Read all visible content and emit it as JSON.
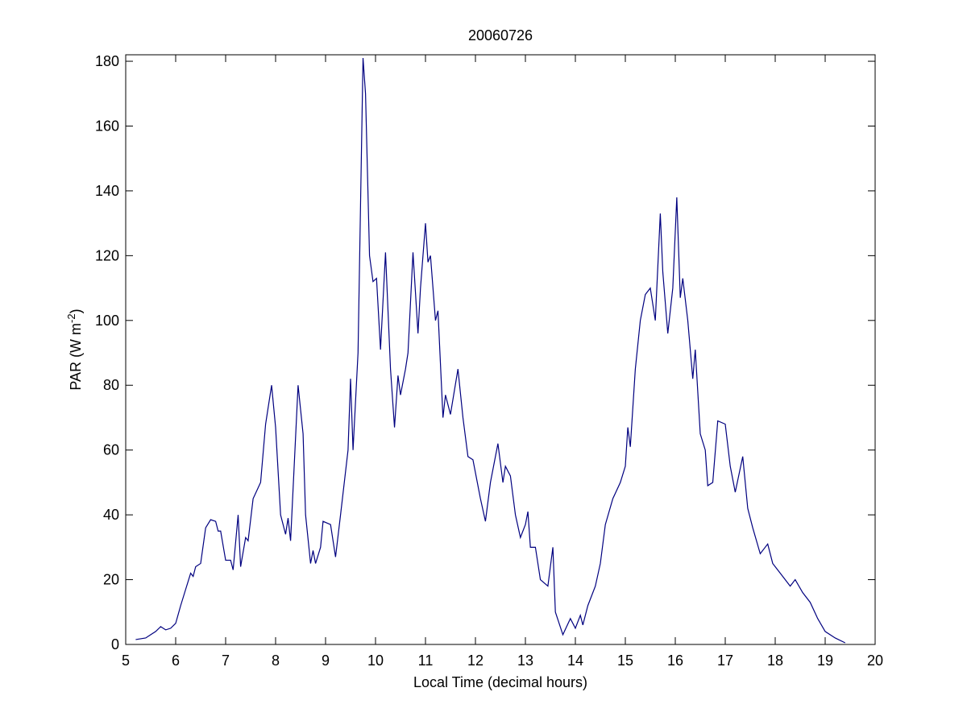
{
  "chart_data": {
    "type": "line",
    "title": "20060726",
    "x_label": "Local Time (decimal hours)",
    "y_label": {
      "text": "PAR (W m",
      "superscript": "-2",
      "suffix": ")"
    },
    "xlim": [
      5,
      20
    ],
    "xticks": [
      5,
      6,
      7,
      8,
      9,
      10,
      11,
      12,
      13,
      14,
      15,
      16,
      17,
      18,
      19,
      20
    ],
    "ylim": [
      0,
      182
    ],
    "yticks": [
      0,
      20,
      40,
      60,
      80,
      100,
      120,
      140,
      160,
      180
    ],
    "grid": false,
    "series": [
      {
        "color": "#00007f",
        "x": [
          5.2,
          5.4,
          5.5,
          5.6,
          5.7,
          5.8,
          5.9,
          6.0,
          6.1,
          6.2,
          6.3,
          6.35,
          6.4,
          6.5,
          6.6,
          6.7,
          6.8,
          6.85,
          6.9,
          7.0,
          7.1,
          7.15,
          7.25,
          7.3,
          7.4,
          7.45,
          7.55,
          7.7,
          7.8,
          7.92,
          8.0,
          8.1,
          8.2,
          8.25,
          8.3,
          8.45,
          8.55,
          8.6,
          8.7,
          8.75,
          8.8,
          8.9,
          8.95,
          9.1,
          9.2,
          9.3,
          9.45,
          9.5,
          9.55,
          9.65,
          9.75,
          9.8,
          9.88,
          9.95,
          10.02,
          10.1,
          10.2,
          10.3,
          10.38,
          10.45,
          10.5,
          10.6,
          10.65,
          10.75,
          10.85,
          10.9,
          11.0,
          11.05,
          11.1,
          11.2,
          11.25,
          11.35,
          11.4,
          11.5,
          11.65,
          11.75,
          11.85,
          11.95,
          12.1,
          12.2,
          12.3,
          12.45,
          12.55,
          12.6,
          12.7,
          12.8,
          12.9,
          13.0,
          13.05,
          13.1,
          13.2,
          13.3,
          13.45,
          13.55,
          13.6,
          13.75,
          13.9,
          14.0,
          14.1,
          14.15,
          14.25,
          14.4,
          14.5,
          14.6,
          14.75,
          14.9,
          15.0,
          15.05,
          15.1,
          15.2,
          15.3,
          15.4,
          15.5,
          15.6,
          15.7,
          15.75,
          15.85,
          15.95,
          16.03,
          16.1,
          16.15,
          16.25,
          16.35,
          16.4,
          16.5,
          16.6,
          16.65,
          16.75,
          16.85,
          17.0,
          17.1,
          17.2,
          17.35,
          17.45,
          17.55,
          17.7,
          17.85,
          17.95,
          18.1,
          18.3,
          18.4,
          18.55,
          18.7,
          18.85,
          19.0,
          19.2,
          19.4
        ],
        "values": [
          1.5,
          2,
          3,
          4,
          5.5,
          4.5,
          5,
          6.5,
          12,
          17,
          22,
          21,
          24,
          25,
          36,
          38.5,
          38,
          35,
          35,
          26,
          26,
          23,
          40,
          24,
          33,
          32,
          45,
          50,
          68,
          80,
          67,
          40,
          34,
          39,
          32,
          80,
          65,
          40,
          25,
          29,
          25,
          30,
          38,
          37,
          27,
          40,
          60,
          82,
          60,
          90,
          181,
          170,
          120,
          112,
          113,
          91,
          121,
          85,
          67,
          83,
          77,
          85,
          90,
          121,
          96,
          110,
          130,
          118,
          120,
          100,
          103,
          70,
          77,
          71,
          85,
          70,
          58,
          57,
          45,
          38,
          50,
          62,
          50,
          55,
          52,
          40,
          33,
          37,
          41,
          30,
          30,
          20,
          18,
          30,
          10,
          3,
          8,
          5,
          9,
          6,
          12,
          18,
          25,
          37,
          45,
          50,
          55,
          67,
          61,
          85,
          100,
          108,
          110,
          100,
          133,
          115,
          96,
          110,
          138,
          107,
          113,
          100,
          82,
          91,
          65,
          60,
          49,
          50,
          69,
          68,
          55,
          47,
          58,
          42,
          36,
          28,
          31,
          25,
          22,
          18,
          20,
          16,
          13,
          8,
          4,
          2,
          0.5
        ]
      }
    ]
  }
}
